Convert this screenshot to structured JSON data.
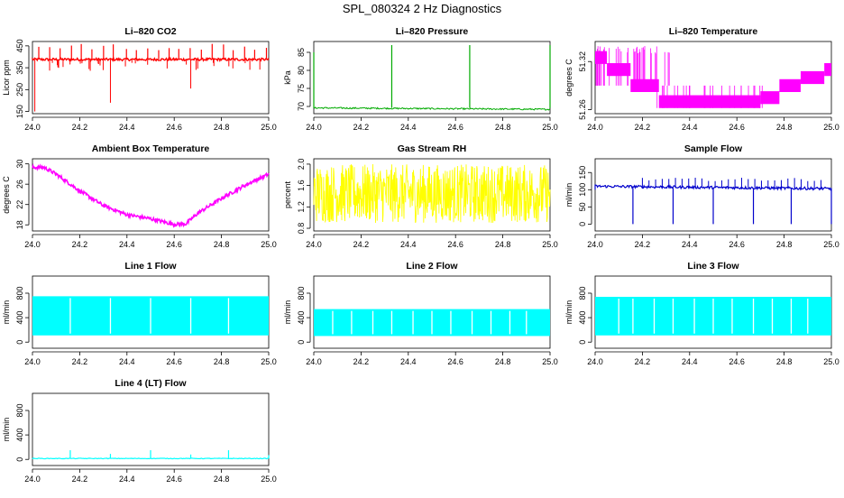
{
  "title": "SPL_080324  2 Hz Diagnostics",
  "chart_data": [
    {
      "id": "co2",
      "type": "line",
      "title": "Li–820 CO2",
      "ylabel": "Licor ppm",
      "color": "#ff0000",
      "x": [
        24.0,
        25.0
      ],
      "xlim": [
        24.0,
        25.0
      ],
      "xticks": [
        "24.0",
        "24.2",
        "24.4",
        "24.6",
        "24.8",
        "25.0"
      ],
      "ylim": [
        140,
        470
      ],
      "yticks": [
        "150",
        "250",
        "350",
        "450"
      ],
      "baseline": 388,
      "spikes_up_to": 460,
      "spikes_down": [
        {
          "x": 24.01,
          "y": 150
        },
        {
          "x": 24.33,
          "y": 190
        },
        {
          "x": 24.67,
          "y": 255
        }
      ]
    },
    {
      "id": "pressure",
      "type": "line",
      "title": "Li–820 Pressure",
      "ylabel": "kPa",
      "color": "#00aa00",
      "x": [
        24.0,
        25.0
      ],
      "xlim": [
        24.0,
        25.0
      ],
      "xticks": [
        "24.0",
        "24.2",
        "24.4",
        "24.6",
        "24.8",
        "25.0"
      ],
      "ylim": [
        68,
        88
      ],
      "yticks": [
        "70",
        "75",
        "80",
        "85"
      ],
      "baseline": 69.6,
      "end_value": 69.2,
      "spikes": [
        {
          "x": 24.0,
          "y": 85
        },
        {
          "x": 24.33,
          "y": 87
        },
        {
          "x": 24.66,
          "y": 87
        },
        {
          "x": 25.0,
          "y": 87
        }
      ]
    },
    {
      "id": "licor_temp",
      "type": "line",
      "title": "Li–820 Temperature",
      "ylabel": "degrees C",
      "color": "#ff00ff",
      "x": [
        24.0,
        25.0
      ],
      "xlim": [
        24.0,
        25.0
      ],
      "xticks": [
        "24.0",
        "24.2",
        "24.4",
        "24.6",
        "24.8",
        "25.0"
      ],
      "ylim": [
        51.255,
        51.345
      ],
      "yticks": [
        "51.26",
        "51.32"
      ],
      "steps": [
        [
          24.0,
          51.325
        ],
        [
          24.05,
          51.31
        ],
        [
          24.15,
          51.29
        ],
        [
          24.27,
          51.27
        ],
        [
          24.5,
          51.27
        ],
        [
          24.7,
          51.275
        ],
        [
          24.78,
          51.29
        ],
        [
          24.87,
          51.3
        ],
        [
          24.97,
          51.31
        ]
      ]
    },
    {
      "id": "box_temp",
      "type": "line",
      "title": "Ambient Box Temperature",
      "ylabel": "degrees C",
      "color": "#ff00ff",
      "x": [
        24.0,
        25.0
      ],
      "xlim": [
        24.0,
        25.0
      ],
      "xticks": [
        "24.0",
        "24.2",
        "24.4",
        "24.6",
        "24.8",
        "25.0"
      ],
      "ylim": [
        16.8,
        31
      ],
      "yticks": [
        "18",
        "22",
        "26",
        "30"
      ],
      "points": [
        [
          24.0,
          29.3
        ],
        [
          24.05,
          29.3
        ],
        [
          24.1,
          28.0
        ],
        [
          24.2,
          24.7
        ],
        [
          24.3,
          21.8
        ],
        [
          24.4,
          20.0
        ],
        [
          24.5,
          19.2
        ],
        [
          24.6,
          18.1
        ],
        [
          24.65,
          18.2
        ],
        [
          24.7,
          20.3
        ],
        [
          24.8,
          23.2
        ],
        [
          24.9,
          25.8
        ],
        [
          25.0,
          28.0
        ]
      ]
    },
    {
      "id": "rh",
      "type": "line",
      "title": "Gas Stream RH",
      "ylabel": "percent",
      "color": "#ffff00",
      "x": [
        24.0,
        25.0
      ],
      "xlim": [
        24.0,
        25.0
      ],
      "xticks": [
        "24.0",
        "24.2",
        "24.4",
        "24.6",
        "24.8",
        "25.0"
      ],
      "ylim": [
        0.75,
        2.1
      ],
      "yticks": [
        "0.8",
        "1.2",
        "1.6",
        "2.0"
      ],
      "band": [
        0.9,
        2.0
      ]
    },
    {
      "id": "sample_flow",
      "type": "line",
      "title": "Sample Flow",
      "ylabel": "ml/min",
      "color": "#0000cc",
      "x": [
        24.0,
        25.0
      ],
      "xlim": [
        24.0,
        25.0
      ],
      "xticks": [
        "24.0",
        "24.2",
        "24.4",
        "24.6",
        "24.8",
        "25.0"
      ],
      "ylim": [
        -20,
        190
      ],
      "yticks": [
        "0",
        "50",
        "100",
        "150"
      ],
      "baseline": 110,
      "end_value": 103,
      "dips": [
        24.16,
        24.33,
        24.5,
        24.67,
        24.83,
        25.0
      ]
    },
    {
      "id": "line1",
      "type": "line",
      "title": "Line 1 Flow",
      "ylabel": "ml/min",
      "color": "#00ffff",
      "x": [
        24.0,
        25.0
      ],
      "xlim": [
        24.0,
        25.0
      ],
      "xticks": [
        "24.0",
        "24.2",
        "24.4",
        "24.6",
        "24.8",
        "25.0"
      ],
      "ylim": [
        -100,
        1080
      ],
      "yticks": [
        "0",
        "400",
        "800"
      ],
      "band": [
        110,
        750
      ],
      "gaps": [
        24.16,
        24.33,
        24.5,
        24.67,
        24.83
      ]
    },
    {
      "id": "line2",
      "type": "line",
      "title": "Line 2 Flow",
      "ylabel": "ml/min",
      "color": "#00ffff",
      "x": [
        24.0,
        25.0
      ],
      "xlim": [
        24.0,
        25.0
      ],
      "xticks": [
        "24.0",
        "24.2",
        "24.4",
        "24.6",
        "24.8",
        "25.0"
      ],
      "ylim": [
        -100,
        1080
      ],
      "yticks": [
        "0",
        "400",
        "800"
      ],
      "band": [
        100,
        540
      ],
      "gaps": [
        24.08,
        24.16,
        24.25,
        24.33,
        24.42,
        24.5,
        24.58,
        24.67,
        24.75,
        24.83,
        24.9
      ]
    },
    {
      "id": "line3",
      "type": "line",
      "title": "Line 3 Flow",
      "ylabel": "ml/min",
      "color": "#00ffff",
      "x": [
        24.0,
        25.0
      ],
      "xlim": [
        24.0,
        25.0
      ],
      "xticks": [
        "24.0",
        "24.2",
        "24.4",
        "24.6",
        "24.8",
        "25.0"
      ],
      "ylim": [
        -100,
        1080
      ],
      "yticks": [
        "0",
        "400",
        "800"
      ],
      "band": [
        110,
        740
      ],
      "gaps": [
        24.1,
        24.16,
        24.25,
        24.33,
        24.42,
        24.5,
        24.58,
        24.67,
        24.75,
        24.83,
        24.9
      ]
    },
    {
      "id": "line4",
      "type": "line",
      "title": "Line 4 (LT) Flow",
      "ylabel": "ml/min",
      "color": "#00ffff",
      "x": [
        24.0,
        25.0
      ],
      "xlim": [
        24.0,
        25.0
      ],
      "xticks": [
        "24.0",
        "24.2",
        "24.4",
        "24.6",
        "24.8",
        "25.0"
      ],
      "ylim": [
        -100,
        1080
      ],
      "yticks": [
        "0",
        "400",
        "800"
      ],
      "baseline": 15,
      "spikes": [
        {
          "x": 24.16,
          "y": 150
        },
        {
          "x": 24.33,
          "y": 90
        },
        {
          "x": 24.5,
          "y": 150
        },
        {
          "x": 24.67,
          "y": 80
        },
        {
          "x": 24.83,
          "y": 150
        },
        {
          "x": 25.0,
          "y": 70
        }
      ]
    }
  ]
}
